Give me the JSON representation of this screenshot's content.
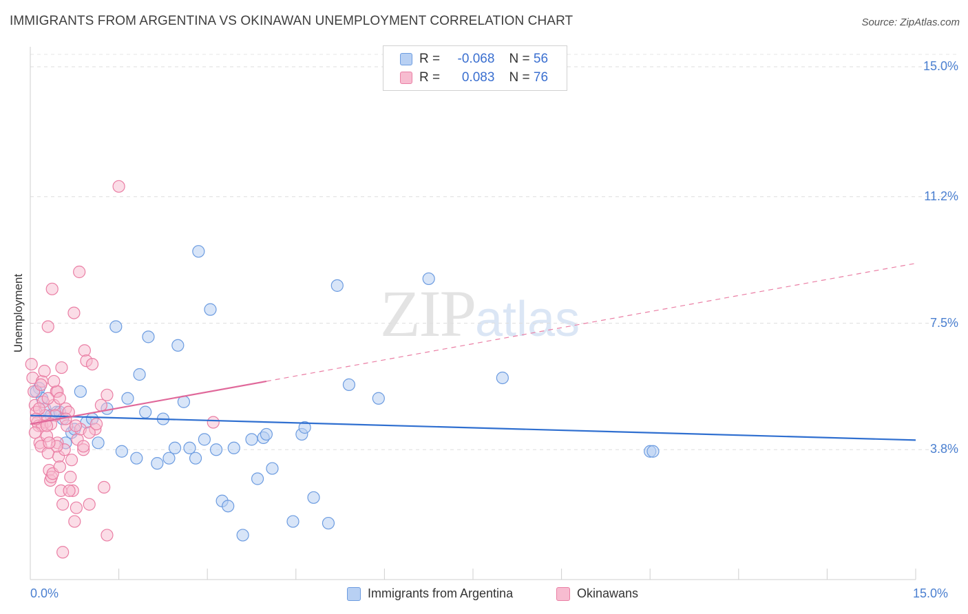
{
  "header": {
    "title": "IMMIGRANTS FROM ARGENTINA VS OKINAWAN UNEMPLOYMENT CORRELATION CHART",
    "source": "Source: ZipAtlas.com"
  },
  "watermark": {
    "zip": "ZIP",
    "atlas": "atlas"
  },
  "legend": {
    "r_label": "R =",
    "n_label": "N =",
    "series": [
      {
        "r": "-0.068",
        "n": "56"
      },
      {
        "r": "0.083",
        "n": "76"
      }
    ]
  },
  "chart_data": {
    "type": "scatter",
    "title": "IMMIGRANTS FROM ARGENTINA VS OKINAWAN UNEMPLOYMENT CORRELATION CHART",
    "xlabel": "",
    "ylabel": "Unemployment",
    "xlim": [
      0,
      15
    ],
    "ylim": [
      0,
      15.7
    ],
    "x_tick_labels": [
      "0.0%",
      "15.0%"
    ],
    "y_ticks": [
      {
        "value": 3.8,
        "label": "3.8%"
      },
      {
        "value": 7.5,
        "label": "7.5%"
      },
      {
        "value": 11.2,
        "label": "11.2%"
      },
      {
        "value": 15.0,
        "label": "15.0%"
      }
    ],
    "grid": true,
    "legend_position": "top-center",
    "series": [
      {
        "name": "Immigrants from Argentina",
        "color": "#6b9be0",
        "fill": "#b8d0f3",
        "trend": {
          "x": [
            0,
            15
          ],
          "y": [
            4.8,
            4.08
          ]
        },
        "points": [
          [
            0.15,
            5.6
          ],
          [
            0.2,
            5.3
          ],
          [
            0.25,
            5.0
          ],
          [
            0.35,
            4.8
          ],
          [
            0.45,
            4.9
          ],
          [
            0.5,
            4.9
          ],
          [
            0.55,
            4.7
          ],
          [
            0.6,
            4.0
          ],
          [
            0.7,
            4.3
          ],
          [
            0.75,
            4.4
          ],
          [
            0.85,
            5.5
          ],
          [
            0.95,
            4.6
          ],
          [
            1.05,
            4.7
          ],
          [
            1.15,
            4.0
          ],
          [
            1.3,
            5.0
          ],
          [
            1.45,
            7.4
          ],
          [
            1.55,
            3.75
          ],
          [
            1.65,
            5.3
          ],
          [
            1.8,
            3.55
          ],
          [
            1.85,
            6.0
          ],
          [
            1.95,
            4.9
          ],
          [
            2.0,
            7.1
          ],
          [
            2.15,
            3.4
          ],
          [
            2.25,
            4.7
          ],
          [
            2.35,
            3.55
          ],
          [
            2.45,
            3.85
          ],
          [
            2.5,
            6.85
          ],
          [
            2.6,
            5.2
          ],
          [
            2.7,
            3.85
          ],
          [
            2.8,
            3.55
          ],
          [
            2.85,
            9.6
          ],
          [
            2.95,
            4.1
          ],
          [
            3.05,
            7.9
          ],
          [
            3.15,
            3.8
          ],
          [
            3.25,
            2.3
          ],
          [
            3.35,
            2.15
          ],
          [
            3.45,
            3.85
          ],
          [
            3.6,
            1.3
          ],
          [
            3.75,
            4.1
          ],
          [
            3.85,
            2.95
          ],
          [
            3.95,
            4.15
          ],
          [
            4.0,
            4.25
          ],
          [
            4.1,
            3.25
          ],
          [
            4.45,
            1.7
          ],
          [
            4.6,
            4.25
          ],
          [
            4.65,
            4.45
          ],
          [
            4.8,
            2.4
          ],
          [
            5.05,
            1.65
          ],
          [
            5.2,
            8.6
          ],
          [
            5.4,
            5.7
          ],
          [
            5.9,
            5.3
          ],
          [
            6.75,
            8.8
          ],
          [
            8.0,
            5.9
          ],
          [
            10.5,
            3.75
          ],
          [
            10.55,
            3.75
          ],
          [
            0.1,
            5.5
          ]
        ]
      },
      {
        "name": "Okinawans",
        "color": "#ea7ea4",
        "fill": "#f7bcd0",
        "trend_solid": {
          "x": [
            0,
            4.0
          ],
          "y": [
            4.55,
            5.8
          ]
        },
        "trend_dashed": {
          "x": [
            4.0,
            15
          ],
          "y": [
            5.8,
            9.25
          ]
        },
        "points": [
          [
            0.02,
            6.3
          ],
          [
            0.04,
            5.9
          ],
          [
            0.06,
            5.5
          ],
          [
            0.08,
            5.1
          ],
          [
            0.1,
            4.9
          ],
          [
            0.12,
            4.6
          ],
          [
            0.14,
            4.5
          ],
          [
            0.16,
            4.0
          ],
          [
            0.18,
            3.9
          ],
          [
            0.2,
            5.8
          ],
          [
            0.22,
            5.2
          ],
          [
            0.24,
            6.1
          ],
          [
            0.26,
            4.6
          ],
          [
            0.28,
            4.2
          ],
          [
            0.3,
            3.7
          ],
          [
            0.32,
            3.2
          ],
          [
            0.34,
            2.9
          ],
          [
            0.36,
            3.0
          ],
          [
            0.38,
            3.1
          ],
          [
            0.4,
            5.1
          ],
          [
            0.42,
            4.8
          ],
          [
            0.44,
            5.5
          ],
          [
            0.46,
            4.0
          ],
          [
            0.48,
            3.6
          ],
          [
            0.5,
            3.3
          ],
          [
            0.52,
            2.6
          ],
          [
            0.55,
            2.2
          ],
          [
            0.58,
            3.8
          ],
          [
            0.6,
            5.0
          ],
          [
            0.62,
            4.5
          ],
          [
            0.65,
            4.9
          ],
          [
            0.68,
            3.0
          ],
          [
            0.7,
            3.5
          ],
          [
            0.72,
            2.6
          ],
          [
            0.75,
            1.7
          ],
          [
            0.78,
            2.1
          ],
          [
            0.8,
            4.1
          ],
          [
            0.85,
            4.4
          ],
          [
            0.9,
            3.8
          ],
          [
            0.92,
            6.7
          ],
          [
            0.95,
            6.4
          ],
          [
            1.0,
            2.2
          ],
          [
            1.05,
            6.3
          ],
          [
            1.1,
            4.4
          ],
          [
            1.2,
            5.1
          ],
          [
            1.25,
            2.7
          ],
          [
            1.3,
            1.3
          ],
          [
            1.5,
            11.5
          ],
          [
            0.3,
            7.4
          ],
          [
            0.37,
            8.5
          ],
          [
            0.74,
            7.8
          ],
          [
            0.83,
            9.0
          ],
          [
            0.53,
            6.2
          ],
          [
            0.46,
            5.5
          ],
          [
            0.3,
            5.3
          ],
          [
            0.25,
            4.8
          ],
          [
            0.2,
            4.5
          ],
          [
            0.15,
            5.0
          ],
          [
            0.1,
            4.7
          ],
          [
            0.08,
            4.3
          ],
          [
            0.35,
            4.55
          ],
          [
            0.4,
            5.8
          ],
          [
            0.45,
            3.9
          ],
          [
            0.6,
            4.7
          ],
          [
            0.66,
            2.6
          ],
          [
            0.77,
            4.5
          ],
          [
            0.9,
            3.9
          ],
          [
            1.0,
            4.3
          ],
          [
            1.12,
            4.55
          ],
          [
            1.3,
            5.4
          ],
          [
            0.55,
            0.8
          ],
          [
            0.32,
            4.0
          ],
          [
            0.18,
            5.7
          ],
          [
            0.5,
            5.3
          ],
          [
            0.28,
            4.5
          ],
          [
            3.1,
            4.6
          ]
        ]
      }
    ]
  }
}
